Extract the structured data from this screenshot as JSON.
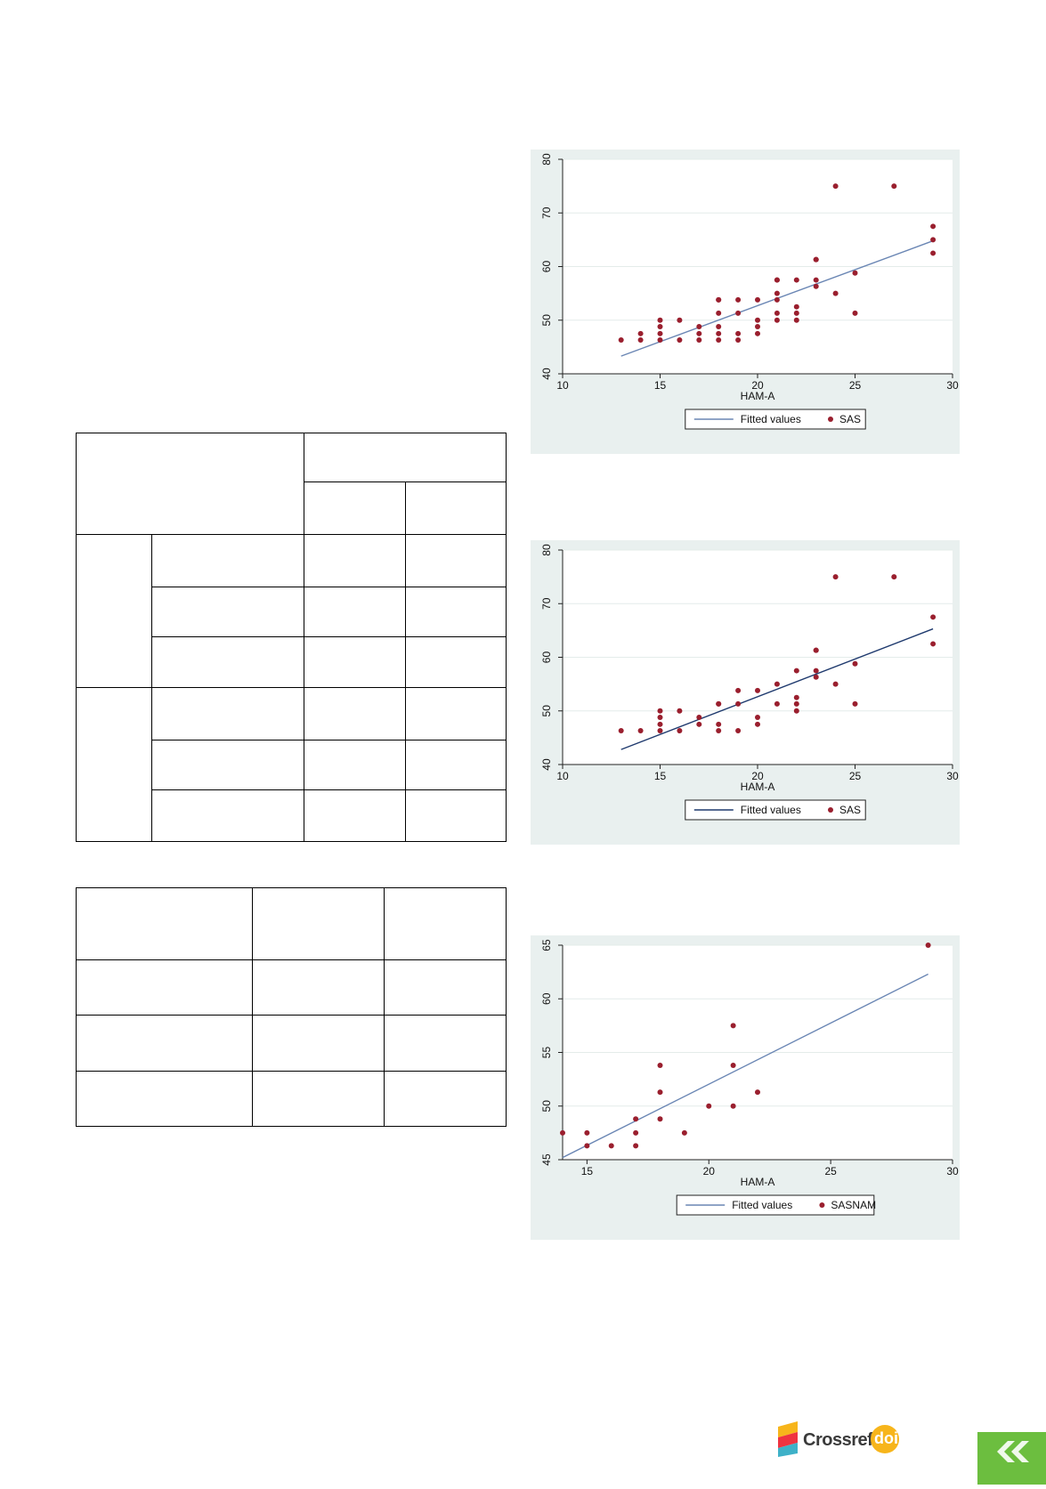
{
  "crossref": {
    "label": "Crossref",
    "doi": "doi"
  },
  "colors": {
    "panel_bg": "#e9f0ef",
    "marker": "#9a1f2e",
    "fit_line_dark": "#1f3a6e",
    "fit_line_light": "#6a86b4",
    "crossref_orange": "#f7b51b",
    "nav_green": "#6cbe3f"
  },
  "icons": {
    "crossref": "crossref-logo-icon",
    "nav": "double-chevron-left-icon"
  },
  "chart_data": [
    {
      "type": "scatter",
      "xlabel": "HAM-A",
      "xlim": [
        10,
        30
      ],
      "ylim": [
        40,
        80
      ],
      "xticks": [
        10,
        15,
        20,
        25,
        30
      ],
      "yticks": [
        40,
        50,
        60,
        70,
        80
      ],
      "grid": true,
      "legend": "bottom",
      "series": [
        {
          "name": "Fitted values",
          "kind": "line",
          "color": "#6a86b4",
          "x": [
            13,
            29
          ],
          "y": [
            43.3,
            64.8
          ]
        },
        {
          "name": "SAS",
          "kind": "scatter",
          "color": "#9a1f2e",
          "x": [
            13,
            14,
            14,
            15,
            15,
            15,
            15,
            16,
            16,
            17,
            17,
            17,
            18,
            18,
            18,
            18,
            18,
            18,
            19,
            19,
            19,
            19,
            20,
            20,
            20,
            20,
            21,
            21,
            21,
            21,
            21,
            21,
            22,
            22,
            22,
            22,
            23,
            23,
            23,
            23,
            24,
            24,
            25,
            25,
            27,
            29,
            29,
            29
          ],
          "y": [
            46.3,
            46.3,
            47.5,
            46.3,
            47.5,
            48.8,
            50,
            46.3,
            50,
            46.3,
            47.5,
            48.8,
            46.3,
            47.5,
            48.8,
            51.3,
            53.8,
            53.8,
            46.3,
            47.5,
            51.3,
            53.8,
            47.5,
            48.8,
            50,
            53.8,
            50,
            51.3,
            53.8,
            55,
            57.5,
            57.5,
            50,
            51.3,
            52.5,
            57.5,
            56.3,
            57.5,
            61.3,
            61.3,
            55,
            75,
            51.3,
            58.8,
            75,
            62.5,
            65,
            67.5
          ]
        }
      ]
    },
    {
      "type": "scatter",
      "xlabel": "HAM-A",
      "xlim": [
        10,
        30
      ],
      "ylim": [
        40,
        80
      ],
      "xticks": [
        10,
        15,
        20,
        25,
        30
      ],
      "yticks": [
        40,
        50,
        60,
        70,
        80
      ],
      "grid": true,
      "legend": "bottom",
      "series": [
        {
          "name": "Fitted values",
          "kind": "line",
          "color": "#1f3a6e",
          "x": [
            13,
            29
          ],
          "y": [
            42.8,
            65.3
          ]
        },
        {
          "name": "SAS",
          "kind": "scatter",
          "color": "#9a1f2e",
          "x": [
            13,
            14,
            15,
            15,
            15,
            15,
            16,
            16,
            17,
            17,
            18,
            18,
            18,
            18,
            19,
            19,
            19,
            20,
            20,
            20,
            21,
            21,
            22,
            22,
            22,
            22,
            23,
            23,
            23,
            23,
            24,
            24,
            25,
            25,
            27,
            29,
            29
          ],
          "y": [
            46.3,
            46.3,
            46.3,
            47.5,
            48.8,
            50,
            46.3,
            50,
            47.5,
            48.8,
            46.3,
            47.5,
            51.3,
            51.3,
            46.3,
            51.3,
            53.8,
            47.5,
            48.8,
            53.8,
            51.3,
            55,
            50,
            51.3,
            52.5,
            57.5,
            56.3,
            57.5,
            61.3,
            61.3,
            55,
            75,
            51.3,
            58.8,
            75,
            62.5,
            67.5
          ]
        }
      ]
    },
    {
      "type": "scatter",
      "xlabel": "HAM-A",
      "xlim": [
        14,
        30
      ],
      "ylim": [
        45,
        65
      ],
      "xticks": [
        15,
        20,
        25,
        30
      ],
      "yticks": [
        45,
        50,
        55,
        60,
        65
      ],
      "grid": true,
      "legend": "bottom",
      "series": [
        {
          "name": "Fitted values",
          "kind": "line",
          "color": "#6a86b4",
          "x": [
            14,
            29
          ],
          "y": [
            45.2,
            62.3
          ]
        },
        {
          "name": "SASNAM",
          "kind": "scatter",
          "color": "#9a1f2e",
          "x": [
            14,
            15,
            15,
            16,
            17,
            17,
            17,
            18,
            18,
            18,
            19,
            20,
            21,
            21,
            21,
            22,
            29
          ],
          "y": [
            47.5,
            46.3,
            47.5,
            46.3,
            46.3,
            47.5,
            48.8,
            48.8,
            51.3,
            53.8,
            47.5,
            50,
            50,
            53.8,
            57.5,
            51.3,
            65
          ]
        }
      ]
    }
  ]
}
